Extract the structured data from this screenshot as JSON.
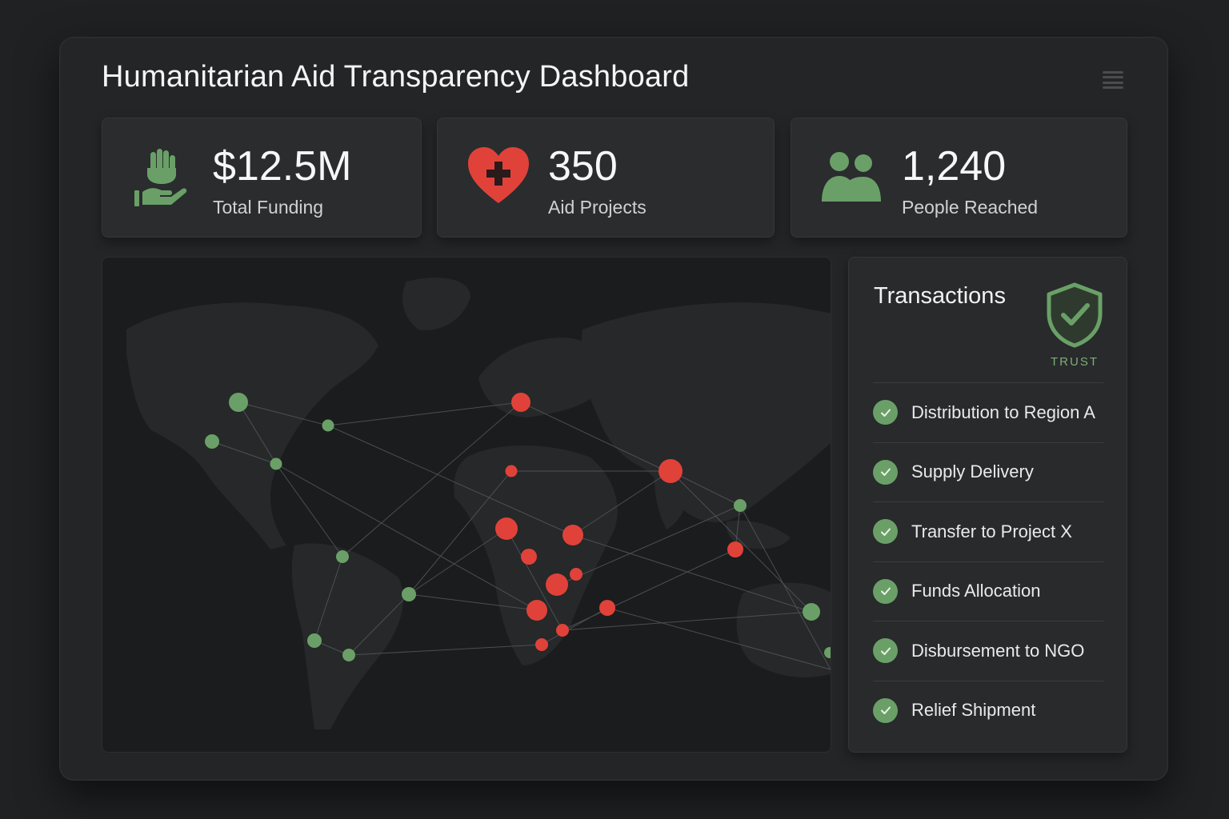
{
  "header": {
    "title": "Humanitarian Aid Transparency Dashboard",
    "menu_icon": "hamburger-menu-icon"
  },
  "stats": [
    {
      "icon": "hand-giving-icon",
      "value": "$12.5M",
      "label": "Total Funding",
      "color": "#6aa067"
    },
    {
      "icon": "heart-plus-icon",
      "value": "350",
      "label": "Aid Projects",
      "color": "#e0423a"
    },
    {
      "icon": "people-icon",
      "value": "1,240",
      "label": "People Reached",
      "color": "#6aa067"
    }
  ],
  "transactions": {
    "title": "Transactions",
    "badge_icon": "shield-check-icon",
    "badge_label": "TRUST",
    "items": [
      {
        "label": "Distribution to Region A",
        "status_icon": "check-circle-icon"
      },
      {
        "label": "Supply Delivery",
        "status_icon": "check-circle-icon"
      },
      {
        "label": "Transfer to Project X",
        "status_icon": "check-circle-icon"
      },
      {
        "label": "Funds Allocation",
        "status_icon": "check-circle-icon"
      },
      {
        "label": "Disbursement to NGO",
        "status_icon": "check-circle-icon"
      },
      {
        "label": "Relief Shipment",
        "status_icon": "check-circle-icon"
      }
    ]
  },
  "map": {
    "icon": "world-map",
    "colors": {
      "donor": "#6aa067",
      "recipient": "#e0423a",
      "link": "#5b5f63",
      "land": "#262829"
    }
  },
  "colors": {
    "accent_green": "#6aa067",
    "accent_red": "#e0423a",
    "background": "#1f2123",
    "panel": "#2a2c2e"
  }
}
